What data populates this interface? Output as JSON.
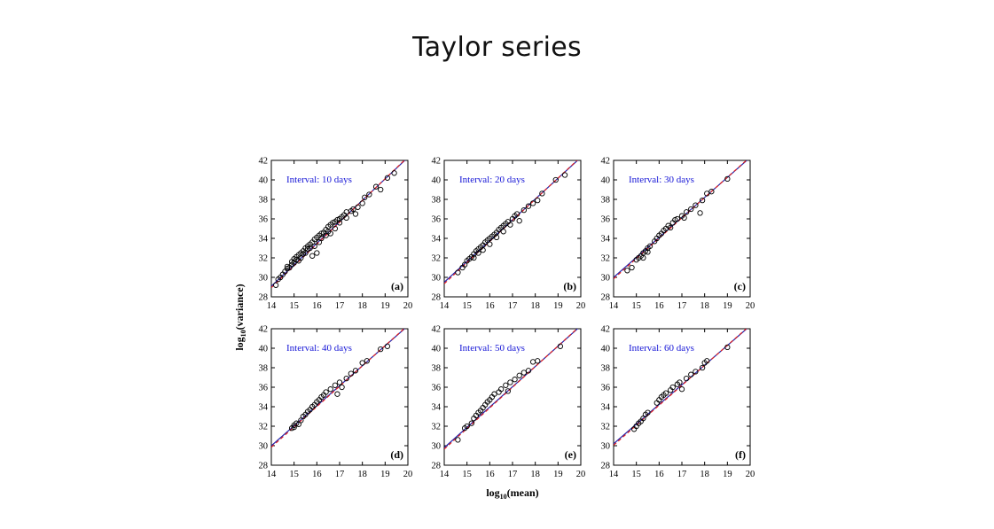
{
  "slide": {
    "title": "Taylor series"
  },
  "figure": {
    "ylabel": "log10(variance)",
    "xlabel": "log10(mean)",
    "xlabel_main": "log",
    "xlabel_sub": "10",
    "xlabel_rest": "(mean)",
    "ylabel_main": "log",
    "ylabel_sub": "10",
    "ylabel_rest": "(variance)"
  },
  "colors": {
    "points": "#000000",
    "fit_solid": "#2222aa",
    "fit_dashed": "#e02020",
    "interval_text": "#1515d6"
  },
  "chart_data": [
    {
      "type": "scatter",
      "panel": "(a)",
      "annotation": "Interval: 10 days",
      "xlim": [
        14,
        20
      ],
      "ylim": [
        28,
        42
      ],
      "xticks": [
        14,
        15,
        16,
        17,
        18,
        19,
        20
      ],
      "yticks": [
        28,
        30,
        32,
        34,
        36,
        38,
        40,
        42
      ],
      "fit_line": {
        "x": [
          14,
          20
        ],
        "y": [
          29.1,
          42.3
        ]
      },
      "points": [
        [
          14.2,
          29.2
        ],
        [
          14.3,
          29.8
        ],
        [
          14.4,
          30.0
        ],
        [
          14.5,
          30.3
        ],
        [
          14.6,
          30.6
        ],
        [
          14.7,
          30.9
        ],
        [
          14.7,
          31.1
        ],
        [
          14.8,
          31.0
        ],
        [
          14.9,
          31.3
        ],
        [
          14.9,
          31.6
        ],
        [
          15.0,
          31.5
        ],
        [
          15.0,
          31.9
        ],
        [
          15.1,
          31.8
        ],
        [
          15.1,
          32.1
        ],
        [
          15.2,
          32.3
        ],
        [
          15.2,
          31.7
        ],
        [
          15.3,
          32.5
        ],
        [
          15.3,
          32.0
        ],
        [
          15.4,
          32.7
        ],
        [
          15.4,
          32.4
        ],
        [
          15.5,
          33.0
        ],
        [
          15.5,
          32.5
        ],
        [
          15.6,
          33.2
        ],
        [
          15.6,
          32.9
        ],
        [
          15.7,
          33.4
        ],
        [
          15.7,
          33.0
        ],
        [
          15.8,
          33.6
        ],
        [
          15.8,
          32.2
        ],
        [
          15.9,
          33.9
        ],
        [
          15.9,
          33.2
        ],
        [
          16.0,
          34.1
        ],
        [
          16.0,
          32.5
        ],
        [
          16.1,
          34.3
        ],
        [
          16.1,
          33.6
        ],
        [
          16.2,
          34.5
        ],
        [
          16.2,
          34.0
        ],
        [
          16.3,
          34.6
        ],
        [
          16.4,
          34.9
        ],
        [
          16.4,
          34.3
        ],
        [
          16.5,
          35.2
        ],
        [
          16.5,
          34.7
        ],
        [
          16.6,
          35.4
        ],
        [
          16.6,
          34.5
        ],
        [
          16.7,
          35.6
        ],
        [
          16.8,
          35.7
        ],
        [
          16.8,
          35.0
        ],
        [
          16.9,
          35.9
        ],
        [
          17.0,
          36.0
        ],
        [
          17.0,
          35.6
        ],
        [
          17.1,
          36.2
        ],
        [
          17.2,
          36.4
        ],
        [
          17.3,
          36.7
        ],
        [
          17.3,
          36.1
        ],
        [
          17.5,
          36.8
        ],
        [
          17.6,
          37.0
        ],
        [
          17.7,
          36.5
        ],
        [
          17.8,
          37.2
        ],
        [
          18.0,
          37.6
        ],
        [
          18.1,
          38.2
        ],
        [
          18.3,
          38.5
        ],
        [
          18.6,
          39.3
        ],
        [
          18.8,
          39.0
        ],
        [
          19.1,
          40.2
        ],
        [
          19.4,
          40.7
        ]
      ]
    },
    {
      "type": "scatter",
      "panel": "(b)",
      "annotation": "Interval: 20 days",
      "xlim": [
        14,
        20
      ],
      "ylim": [
        28,
        42
      ],
      "xticks": [
        14,
        15,
        16,
        17,
        18,
        19,
        20
      ],
      "yticks": [
        28,
        30,
        32,
        34,
        36,
        38,
        40,
        42
      ],
      "fit_line": {
        "x": [
          14,
          20
        ],
        "y": [
          29.5,
          42.3
        ]
      },
      "points": [
        [
          14.6,
          30.5
        ],
        [
          14.8,
          31.0
        ],
        [
          14.9,
          31.3
        ],
        [
          15.0,
          31.7
        ],
        [
          15.1,
          31.9
        ],
        [
          15.2,
          32.1
        ],
        [
          15.3,
          32.4
        ],
        [
          15.3,
          32.0
        ],
        [
          15.4,
          32.7
        ],
        [
          15.5,
          32.9
        ],
        [
          15.5,
          32.5
        ],
        [
          15.6,
          33.1
        ],
        [
          15.7,
          33.3
        ],
        [
          15.7,
          32.8
        ],
        [
          15.8,
          33.6
        ],
        [
          15.9,
          33.8
        ],
        [
          16.0,
          34.0
        ],
        [
          16.0,
          33.4
        ],
        [
          16.1,
          34.2
        ],
        [
          16.2,
          34.4
        ],
        [
          16.3,
          34.6
        ],
        [
          16.3,
          34.1
        ],
        [
          16.4,
          34.9
        ],
        [
          16.5,
          35.1
        ],
        [
          16.6,
          35.3
        ],
        [
          16.6,
          34.7
        ],
        [
          16.7,
          35.5
        ],
        [
          16.8,
          35.7
        ],
        [
          16.9,
          35.4
        ],
        [
          17.0,
          36.0
        ],
        [
          17.1,
          36.3
        ],
        [
          17.2,
          36.5
        ],
        [
          17.3,
          35.8
        ],
        [
          17.5,
          36.9
        ],
        [
          17.7,
          37.3
        ],
        [
          17.9,
          37.6
        ],
        [
          18.1,
          37.9
        ],
        [
          18.3,
          38.6
        ],
        [
          18.9,
          40.0
        ],
        [
          19.3,
          40.5
        ]
      ]
    },
    {
      "type": "scatter",
      "panel": "(c)",
      "annotation": "Interval: 30 days",
      "xlim": [
        14,
        20
      ],
      "ylim": [
        28,
        42
      ],
      "xticks": [
        14,
        15,
        16,
        17,
        18,
        19,
        20
      ],
      "yticks": [
        28,
        30,
        32,
        34,
        36,
        38,
        40,
        42
      ],
      "fit_line": {
        "x": [
          14,
          20
        ],
        "y": [
          30.0,
          42.3
        ]
      },
      "points": [
        [
          14.6,
          30.7
        ],
        [
          14.8,
          31.0
        ],
        [
          15.0,
          31.8
        ],
        [
          15.1,
          32.0
        ],
        [
          15.2,
          32.2
        ],
        [
          15.3,
          32.5
        ],
        [
          15.3,
          32.0
        ],
        [
          15.4,
          32.7
        ],
        [
          15.5,
          33.0
        ],
        [
          15.5,
          32.6
        ],
        [
          15.6,
          33.2
        ],
        [
          15.8,
          33.7
        ],
        [
          15.9,
          34.0
        ],
        [
          16.0,
          34.3
        ],
        [
          16.1,
          34.5
        ],
        [
          16.2,
          34.8
        ],
        [
          16.3,
          35.0
        ],
        [
          16.4,
          35.3
        ],
        [
          16.5,
          35.1
        ],
        [
          16.6,
          35.6
        ],
        [
          16.7,
          35.9
        ],
        [
          16.8,
          36.0
        ],
        [
          17.0,
          36.3
        ],
        [
          17.1,
          36.1
        ],
        [
          17.2,
          36.7
        ],
        [
          17.4,
          37.0
        ],
        [
          17.6,
          37.4
        ],
        [
          17.8,
          36.6
        ],
        [
          17.9,
          37.9
        ],
        [
          18.1,
          38.6
        ],
        [
          18.3,
          38.8
        ],
        [
          19.0,
          40.1
        ]
      ]
    },
    {
      "type": "scatter",
      "panel": "(d)",
      "annotation": "Interval: 40 days",
      "xlim": [
        14,
        20
      ],
      "ylim": [
        28,
        42
      ],
      "xticks": [
        14,
        15,
        16,
        17,
        18,
        19,
        20
      ],
      "yticks": [
        28,
        30,
        32,
        34,
        36,
        38,
        40,
        42
      ],
      "fit_line": {
        "x": [
          14,
          20
        ],
        "y": [
          30.0,
          42.3
        ]
      },
      "points": [
        [
          14.9,
          31.8
        ],
        [
          15.0,
          32.1
        ],
        [
          15.0,
          31.9
        ],
        [
          15.1,
          32.3
        ],
        [
          15.2,
          32.2
        ],
        [
          15.3,
          32.6
        ],
        [
          15.4,
          33.0
        ],
        [
          15.5,
          33.2
        ],
        [
          15.6,
          33.5
        ],
        [
          15.7,
          33.7
        ],
        [
          15.8,
          34.0
        ],
        [
          15.9,
          34.2
        ],
        [
          16.0,
          34.5
        ],
        [
          16.1,
          34.7
        ],
        [
          16.2,
          35.0
        ],
        [
          16.3,
          35.2
        ],
        [
          16.4,
          35.5
        ],
        [
          16.6,
          35.8
        ],
        [
          16.8,
          36.2
        ],
        [
          16.9,
          35.3
        ],
        [
          17.0,
          36.5
        ],
        [
          17.1,
          36.0
        ],
        [
          17.3,
          36.9
        ],
        [
          17.5,
          37.4
        ],
        [
          17.7,
          37.7
        ],
        [
          18.0,
          38.5
        ],
        [
          18.2,
          38.7
        ],
        [
          18.8,
          39.9
        ],
        [
          19.1,
          40.2
        ]
      ]
    },
    {
      "type": "scatter",
      "panel": "(e)",
      "annotation": "Interval: 50 days",
      "xlim": [
        14,
        20
      ],
      "ylim": [
        28,
        42
      ],
      "xticks": [
        14,
        15,
        16,
        17,
        18,
        19,
        20
      ],
      "yticks": [
        28,
        30,
        32,
        34,
        36,
        38,
        40,
        42
      ],
      "fit_line": {
        "x": [
          14,
          20
        ],
        "y": [
          29.8,
          42.3
        ]
      },
      "points": [
        [
          14.6,
          30.6
        ],
        [
          14.9,
          31.8
        ],
        [
          15.0,
          32.0
        ],
        [
          15.2,
          32.3
        ],
        [
          15.3,
          32.8
        ],
        [
          15.4,
          33.1
        ],
        [
          15.5,
          33.4
        ],
        [
          15.6,
          33.6
        ],
        [
          15.7,
          33.9
        ],
        [
          15.8,
          34.2
        ],
        [
          15.9,
          34.5
        ],
        [
          16.0,
          34.7
        ],
        [
          16.1,
          35.0
        ],
        [
          16.2,
          35.3
        ],
        [
          16.4,
          35.5
        ],
        [
          16.5,
          35.8
        ],
        [
          16.7,
          36.2
        ],
        [
          16.8,
          35.6
        ],
        [
          16.9,
          36.5
        ],
        [
          17.1,
          36.8
        ],
        [
          17.3,
          37.2
        ],
        [
          17.5,
          37.5
        ],
        [
          17.7,
          37.7
        ],
        [
          17.9,
          38.6
        ],
        [
          18.1,
          38.7
        ],
        [
          19.1,
          40.2
        ]
      ]
    },
    {
      "type": "scatter",
      "panel": "(f)",
      "annotation": "Interval: 60 days",
      "xlim": [
        14,
        20
      ],
      "ylim": [
        28,
        42
      ],
      "xticks": [
        14,
        15,
        16,
        17,
        18,
        19,
        20
      ],
      "yticks": [
        28,
        30,
        32,
        34,
        36,
        38,
        40,
        42
      ],
      "fit_line": {
        "x": [
          14,
          20
        ],
        "y": [
          30.2,
          42.3
        ]
      },
      "points": [
        [
          14.9,
          31.7
        ],
        [
          15.0,
          32.0
        ],
        [
          15.1,
          32.3
        ],
        [
          15.2,
          32.5
        ],
        [
          15.3,
          32.8
        ],
        [
          15.4,
          33.2
        ],
        [
          15.5,
          33.4
        ],
        [
          15.9,
          34.4
        ],
        [
          16.0,
          34.7
        ],
        [
          16.1,
          35.0
        ],
        [
          16.2,
          35.2
        ],
        [
          16.3,
          35.4
        ],
        [
          16.5,
          35.7
        ],
        [
          16.6,
          36.0
        ],
        [
          16.8,
          36.3
        ],
        [
          16.9,
          36.5
        ],
        [
          17.0,
          35.8
        ],
        [
          17.2,
          36.9
        ],
        [
          17.4,
          37.3
        ],
        [
          17.6,
          37.6
        ],
        [
          17.9,
          38.0
        ],
        [
          18.0,
          38.5
        ],
        [
          18.1,
          38.7
        ],
        [
          19.0,
          40.1
        ]
      ]
    }
  ]
}
